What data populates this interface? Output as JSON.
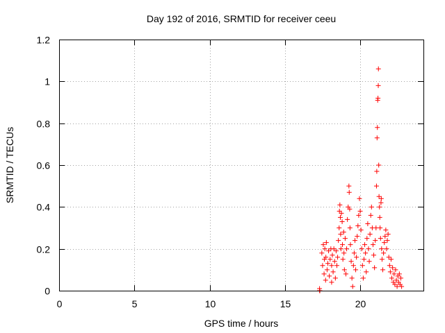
{
  "chart_data": {
    "type": "scatter",
    "title": "Day 192 of 2016, SRMTID for receiver ceeu",
    "xlabel": "GPS time / hours",
    "ylabel": "SRMTID / TECUs",
    "xlim": [
      0,
      24.2
    ],
    "ylim": [
      0,
      1.2
    ],
    "xticks": [
      0,
      5,
      10,
      15,
      20
    ],
    "xtick_labels": [
      "0",
      "5",
      "10",
      "15",
      "20"
    ],
    "yticks": [
      0,
      0.2,
      0.4,
      0.6,
      0.8,
      1.0,
      1.2
    ],
    "ytick_labels": [
      "0",
      "0.2",
      "0.4",
      "0.6",
      "0.8",
      "1",
      "1.2"
    ],
    "grid": true,
    "marker": "+",
    "color": "#ff0000",
    "series": [
      {
        "name": "SRMTID",
        "points": [
          [
            17.3,
            0.0
          ],
          [
            17.3,
            0.01
          ],
          [
            17.32,
            0.0
          ],
          [
            17.45,
            0.18
          ],
          [
            17.5,
            0.12
          ],
          [
            17.55,
            0.22
          ],
          [
            17.6,
            0.08
          ],
          [
            17.62,
            0.15
          ],
          [
            17.65,
            0.2
          ],
          [
            17.7,
            0.05
          ],
          [
            17.72,
            0.16
          ],
          [
            17.75,
            0.23
          ],
          [
            17.8,
            0.1
          ],
          [
            17.85,
            0.13
          ],
          [
            17.9,
            0.19
          ],
          [
            17.95,
            0.07
          ],
          [
            18.0,
            0.15
          ],
          [
            18.05,
            0.2
          ],
          [
            18.1,
            0.04
          ],
          [
            18.1,
            0.12
          ],
          [
            18.15,
            0.17
          ],
          [
            18.2,
            0.09
          ],
          [
            18.25,
            0.2
          ],
          [
            18.3,
            0.14
          ],
          [
            18.35,
            0.06
          ],
          [
            18.4,
            0.19
          ],
          [
            18.45,
            0.12
          ],
          [
            18.5,
            0.16
          ],
          [
            18.55,
            0.24
          ],
          [
            18.6,
            0.3
          ],
          [
            18.62,
            0.38
          ],
          [
            18.65,
            0.41
          ],
          [
            18.68,
            0.35
          ],
          [
            18.7,
            0.27
          ],
          [
            18.72,
            0.2
          ],
          [
            18.75,
            0.37
          ],
          [
            18.8,
            0.33
          ],
          [
            18.82,
            0.22
          ],
          [
            18.85,
            0.15
          ],
          [
            18.9,
            0.28
          ],
          [
            18.92,
            0.18
          ],
          [
            18.95,
            0.1
          ],
          [
            19.0,
            0.25
          ],
          [
            19.05,
            0.08
          ],
          [
            19.1,
            0.2
          ],
          [
            19.15,
            0.34
          ],
          [
            19.2,
            0.4
          ],
          [
            19.25,
            0.5
          ],
          [
            19.27,
            0.47
          ],
          [
            19.3,
            0.39
          ],
          [
            19.32,
            0.3
          ],
          [
            19.35,
            0.22
          ],
          [
            19.4,
            0.14
          ],
          [
            19.45,
            0.06
          ],
          [
            19.5,
            0.02
          ],
          [
            19.55,
            0.12
          ],
          [
            19.6,
            0.18
          ],
          [
            19.65,
            0.24
          ],
          [
            19.7,
            0.1
          ],
          [
            19.75,
            0.16
          ],
          [
            19.8,
            0.26
          ],
          [
            19.85,
            0.31
          ],
          [
            19.9,
            0.36
          ],
          [
            19.95,
            0.44
          ],
          [
            20.0,
            0.38
          ],
          [
            20.05,
            0.29
          ],
          [
            20.1,
            0.2
          ],
          [
            20.15,
            0.12
          ],
          [
            20.2,
            0.06
          ],
          [
            20.25,
            0.15
          ],
          [
            20.3,
            0.22
          ],
          [
            20.35,
            0.18
          ],
          [
            20.4,
            0.09
          ],
          [
            20.45,
            0.25
          ],
          [
            20.5,
            0.32
          ],
          [
            20.55,
            0.2
          ],
          [
            20.6,
            0.14
          ],
          [
            20.65,
            0.27
          ],
          [
            20.7,
            0.36
          ],
          [
            20.75,
            0.4
          ],
          [
            20.8,
            0.3
          ],
          [
            20.85,
            0.22
          ],
          [
            20.9,
            0.17
          ],
          [
            20.95,
            0.11
          ],
          [
            21.0,
            0.24
          ],
          [
            21.05,
            0.3
          ],
          [
            21.08,
            0.5
          ],
          [
            21.1,
            0.57
          ],
          [
            21.12,
            0.73
          ],
          [
            21.14,
            0.78
          ],
          [
            21.16,
            0.91
          ],
          [
            21.18,
            0.92
          ],
          [
            21.2,
            0.98
          ],
          [
            21.21,
            1.06
          ],
          [
            21.23,
            0.6
          ],
          [
            21.25,
            0.45
          ],
          [
            21.28,
            0.4
          ],
          [
            21.3,
            0.35
          ],
          [
            21.32,
            0.3
          ],
          [
            21.35,
            0.25
          ],
          [
            21.38,
            0.42
          ],
          [
            21.4,
            0.44
          ],
          [
            21.42,
            0.2
          ],
          [
            21.45,
            0.15
          ],
          [
            21.5,
            0.1
          ],
          [
            21.55,
            0.18
          ],
          [
            21.6,
            0.23
          ],
          [
            21.65,
            0.26
          ],
          [
            21.7,
            0.29
          ],
          [
            21.75,
            0.2
          ],
          [
            21.8,
            0.24
          ],
          [
            21.85,
            0.27
          ],
          [
            21.9,
            0.16
          ],
          [
            21.95,
            0.12
          ],
          [
            22.0,
            0.09
          ],
          [
            22.05,
            0.15
          ],
          [
            22.1,
            0.06
          ],
          [
            22.15,
            0.11
          ],
          [
            22.2,
            0.04
          ],
          [
            22.25,
            0.08
          ],
          [
            22.3,
            0.03
          ],
          [
            22.35,
            0.1
          ],
          [
            22.4,
            0.05
          ],
          [
            22.45,
            0.02
          ],
          [
            22.5,
            0.07
          ],
          [
            22.55,
            0.04
          ],
          [
            22.6,
            0.08
          ],
          [
            22.65,
            0.03
          ],
          [
            22.7,
            0.06
          ],
          [
            22.75,
            0.02
          ]
        ]
      }
    ]
  }
}
